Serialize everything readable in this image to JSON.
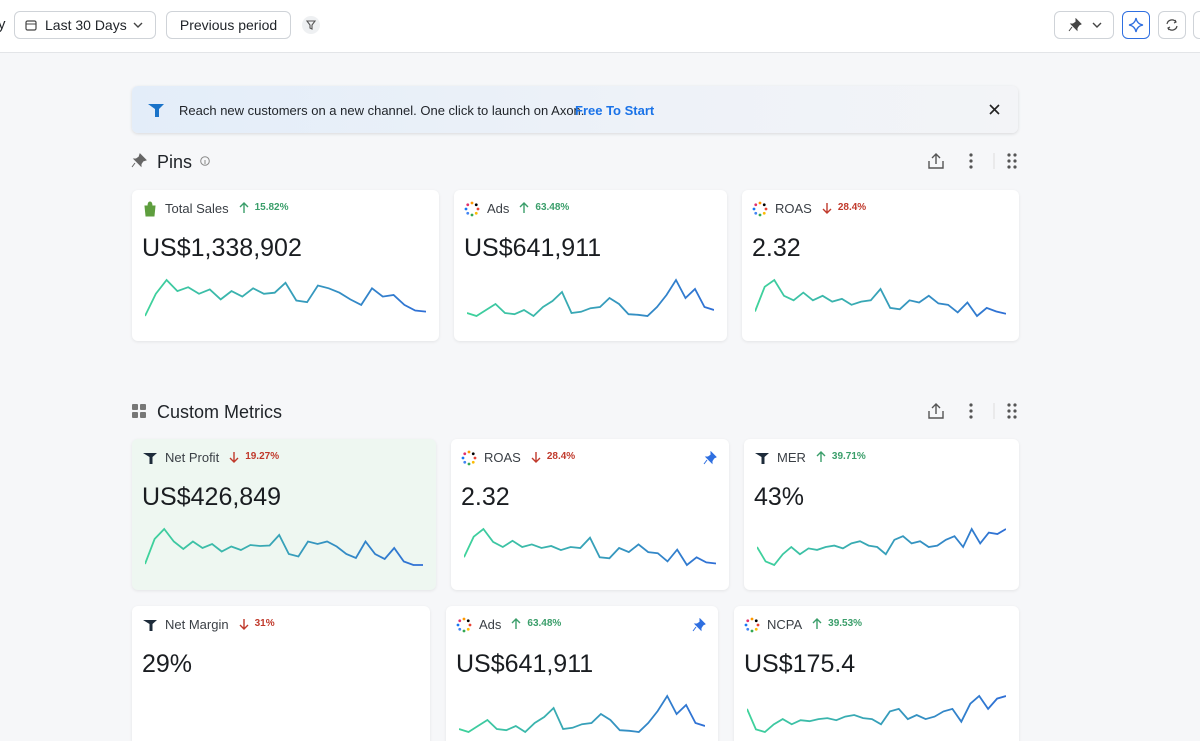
{
  "toolbar": {
    "left_partial": "y",
    "date_range": "Last 30 Days",
    "compare": "Previous period"
  },
  "banner": {
    "text": "Reach new customers on a new channel. One click to launch on Axon.",
    "link": "Free To Start"
  },
  "sections": [
    {
      "title": "Pins",
      "cards": [
        {
          "name": "Total Sales",
          "icon": "shopify",
          "direction": "up",
          "change": "15.82%",
          "value": "US$1,338,902",
          "pinned": false,
          "spark": [
            20,
            60,
            85,
            65,
            72,
            60,
            68,
            50,
            65,
            55,
            70,
            60,
            62,
            80,
            48,
            45,
            75,
            70,
            62,
            50,
            40,
            70,
            55,
            58,
            40,
            30,
            28
          ]
        },
        {
          "name": "Ads",
          "icon": "ads",
          "direction": "up",
          "change": "63.48%",
          "value": "US$641,911",
          "pinned": false,
          "spark": [
            30,
            25,
            35,
            45,
            30,
            28,
            35,
            25,
            40,
            50,
            65,
            30,
            32,
            38,
            40,
            55,
            45,
            28,
            27,
            25,
            40,
            60,
            85,
            55,
            70,
            40,
            35
          ]
        },
        {
          "name": "ROAS",
          "icon": "ads",
          "direction": "down",
          "change": "28.4%",
          "value": "2.32",
          "pinned": false,
          "spark": [
            20,
            75,
            90,
            55,
            45,
            62,
            45,
            55,
            42,
            48,
            35,
            42,
            45,
            70,
            28,
            25,
            45,
            40,
            55,
            38,
            35,
            18,
            40,
            10,
            28,
            20,
            15
          ]
        }
      ]
    },
    {
      "title": "Custom Metrics",
      "cards": [
        {
          "name": "Net Profit",
          "icon": "whale",
          "direction": "down",
          "change": "19.27%",
          "value": "US$426,849",
          "pinned": false,
          "spark": [
            10,
            60,
            80,
            55,
            40,
            55,
            42,
            50,
            35,
            45,
            38,
            48,
            46,
            47,
            68,
            30,
            25,
            55,
            50,
            55,
            45,
            30,
            22,
            55,
            30,
            20,
            42,
            15,
            8,
            8
          ]
        },
        {
          "name": "ROAS",
          "icon": "ads",
          "direction": "down",
          "change": "28.4%",
          "value": "2.32",
          "pinned": true,
          "spark": [
            30,
            70,
            85,
            60,
            50,
            62,
            50,
            55,
            48,
            52,
            44,
            50,
            48,
            68,
            30,
            28,
            48,
            40,
            55,
            40,
            38,
            22,
            45,
            15,
            30,
            20,
            18
          ]
        },
        {
          "name": "MER",
          "icon": "whale",
          "direction": "up",
          "change": "39.71%",
          "value": "43%",
          "pinned": false,
          "spark": [
            40,
            20,
            15,
            30,
            40,
            30,
            38,
            36,
            40,
            42,
            38,
            45,
            48,
            42,
            40,
            30,
            50,
            55,
            45,
            48,
            40,
            42,
            50,
            55,
            40,
            65,
            45,
            60,
            58,
            65
          ]
        }
      ]
    },
    {
      "title": null,
      "cards": [
        {
          "name": "Net Margin",
          "icon": "whale",
          "direction": "down",
          "change": "31%",
          "value": "29%",
          "pinned": false,
          "spark": []
        },
        {
          "name": "Ads",
          "icon": "ads",
          "direction": "up",
          "change": "63.48%",
          "value": "US$641,911",
          "pinned": true,
          "spark": [
            30,
            25,
            35,
            45,
            30,
            28,
            35,
            25,
            40,
            50,
            65,
            30,
            32,
            38,
            40,
            55,
            45,
            28,
            27,
            25,
            40,
            60,
            85,
            55,
            70,
            40,
            35
          ]
        },
        {
          "name": "NCPA",
          "icon": "ads",
          "direction": "up",
          "change": "39.53%",
          "value": "US$175.4",
          "pinned": false,
          "spark": [
            60,
            20,
            15,
            30,
            40,
            30,
            38,
            36,
            40,
            42,
            38,
            45,
            48,
            42,
            40,
            30,
            55,
            60,
            40,
            48,
            40,
            45,
            55,
            60,
            35,
            70,
            85,
            60,
            80,
            85
          ]
        }
      ]
    }
  ]
}
